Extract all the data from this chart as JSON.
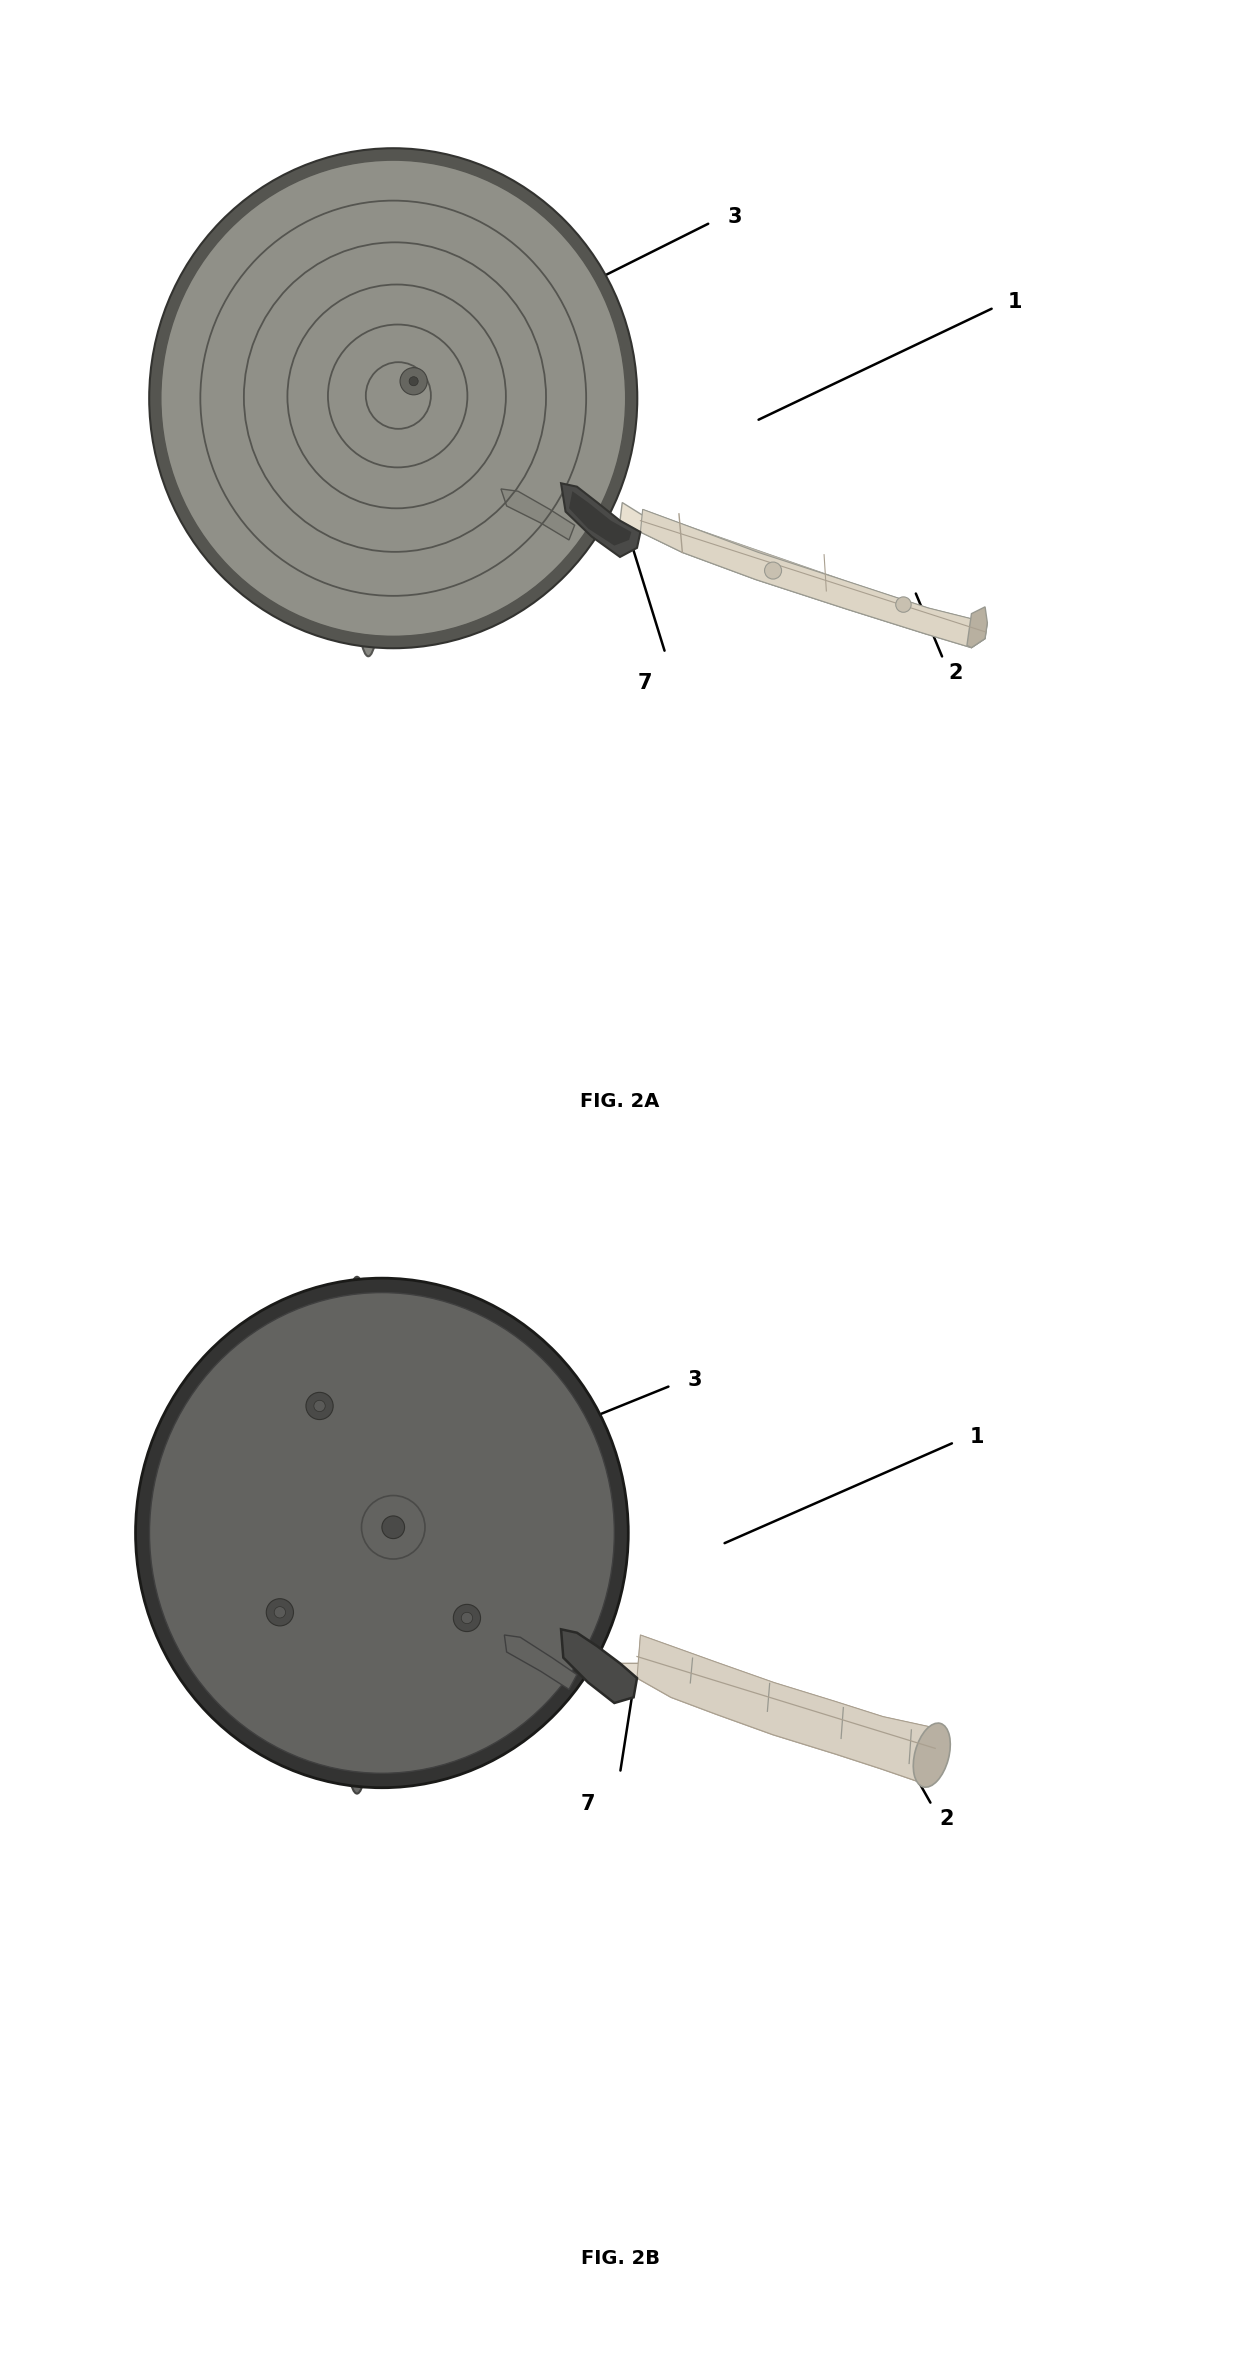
{
  "fig_width": 12.4,
  "fig_height": 23.62,
  "background_color": "#ffffff",
  "fig2a": {
    "label": "FIG. 2A",
    "label_fontsize": 14,
    "label_fontweight": "bold"
  },
  "fig2b": {
    "label": "FIG. 2B",
    "label_fontsize": 14,
    "label_fontweight": "bold"
  },
  "disk_face_color": "#888880",
  "disk_edge_color": "#555550",
  "disk_rim_color": "#666660",
  "disk_ring_color": "#666660",
  "disk_back_color": "#555550",
  "neck_color": "#4a4a48",
  "neck_edge_color": "#333330",
  "handle_top_color": "#e8e0d0",
  "handle_mid_color": "#d8d0c0",
  "handle_bot_color": "#c8c0b0",
  "handle_edge_color": "#999990",
  "handle_dark_color": "#b0a898",
  "ann_color": "#000000",
  "ann_lw": 1.8
}
